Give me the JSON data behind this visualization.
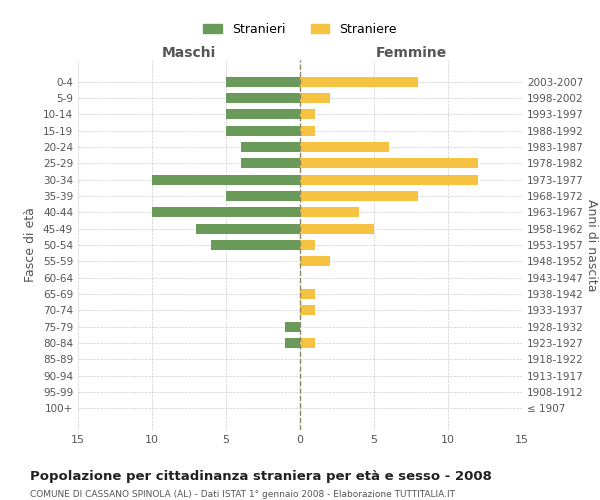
{
  "age_groups": [
    "100+",
    "95-99",
    "90-94",
    "85-89",
    "80-84",
    "75-79",
    "70-74",
    "65-69",
    "60-64",
    "55-59",
    "50-54",
    "45-49",
    "40-44",
    "35-39",
    "30-34",
    "25-29",
    "20-24",
    "15-19",
    "10-14",
    "5-9",
    "0-4"
  ],
  "birth_years": [
    "≤ 1907",
    "1908-1912",
    "1913-1917",
    "1918-1922",
    "1923-1927",
    "1928-1932",
    "1933-1937",
    "1938-1942",
    "1943-1947",
    "1948-1952",
    "1953-1957",
    "1958-1962",
    "1963-1967",
    "1968-1972",
    "1973-1977",
    "1978-1982",
    "1983-1987",
    "1988-1992",
    "1993-1997",
    "1998-2002",
    "2003-2007"
  ],
  "maschi": [
    0,
    0,
    0,
    0,
    1,
    1,
    0,
    0,
    0,
    0,
    6,
    7,
    10,
    5,
    10,
    4,
    4,
    5,
    5,
    5,
    5
  ],
  "femmine": [
    0,
    0,
    0,
    0,
    1,
    0,
    1,
    1,
    0,
    2,
    1,
    5,
    4,
    8,
    12,
    12,
    6,
    1,
    1,
    2,
    8
  ],
  "maschi_color": "#6a9a5a",
  "femmine_color": "#f5c242",
  "background_color": "#ffffff",
  "grid_color": "#cccccc",
  "title": "Popolazione per cittadinanza straniera per età e sesso - 2008",
  "subtitle": "COMUNE DI CASSANO SPINOLA (AL) - Dati ISTAT 1° gennaio 2008 - Elaborazione TUTTITALIA.IT",
  "ylabel_left": "Fasce di età",
  "ylabel_right": "Anni di nascita",
  "xlabel_maschi": "Maschi",
  "xlabel_femmine": "Femmine",
  "legend_maschi": "Stranieri",
  "legend_femmine": "Straniere",
  "xlim": 15,
  "xticks": [
    -15,
    -10,
    -5,
    0,
    5,
    10,
    15
  ],
  "xticklabels": [
    "15",
    "10",
    "5",
    "0",
    "5",
    "10",
    "15"
  ]
}
